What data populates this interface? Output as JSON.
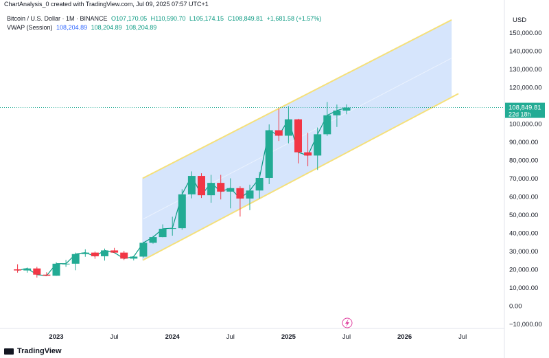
{
  "header": {
    "caption": "ChartAnalysis_0 created with TradingView.com, Jul 09, 2025 07:57 UTC+1",
    "symbol": "Bitcoin / U.S. Dollar · 1M · BINANCE",
    "open": "O107,170.05",
    "high": "H110,590.70",
    "low": "L105,174.15",
    "close": "C108,849.81",
    "change": "+1,681.58 (+1.57%)",
    "vwap_label": "VWAP (Session)",
    "vwap_values": [
      "108,204.89",
      "108,204.89",
      "108,204.89"
    ]
  },
  "price_axis": {
    "currency": "USD",
    "ticks": [
      "150,000.00",
      "140,000.00",
      "130,000.00",
      "120,000.00",
      "100,000.00",
      "90,000.00",
      "80,000.00",
      "70,000.00",
      "60,000.00",
      "50,000.00",
      "40,000.00",
      "30,000.00",
      "20,000.00",
      "10,000.00",
      "0.00",
      "−10,000.00"
    ],
    "last_price": "108,849.81",
    "countdown": "22d 18h"
  },
  "time_axis": {
    "ticks": [
      "2023",
      "Jul",
      "2024",
      "Jul",
      "2025",
      "Jul",
      "2026",
      "Jul"
    ]
  },
  "footer": {
    "brand": "TradingView"
  },
  "colors": {
    "up": "#22ab94",
    "down": "#f23645",
    "channel_fill": "#cfe0fb",
    "channel_line": "#f5e07a",
    "vwap": "#089981"
  },
  "chart_data": {
    "type": "candlestick",
    "interval": "1M",
    "ylim": [
      -10000,
      150000
    ],
    "channel": {
      "start": "2023-10",
      "end": "2026-06",
      "upper_start": 70000,
      "upper_end": 157000,
      "lower_start": 25000,
      "lower_end": 115000
    },
    "candles": [
      {
        "t": "2022-09",
        "o": 20000,
        "h": 22800,
        "l": 18200,
        "c": 19400
      },
      {
        "t": "2022-10",
        "o": 19400,
        "h": 21000,
        "l": 18200,
        "c": 20500
      },
      {
        "t": "2022-11",
        "o": 20500,
        "h": 21400,
        "l": 15500,
        "c": 17100
      },
      {
        "t": "2022-12",
        "o": 17100,
        "h": 18400,
        "l": 16300,
        "c": 16500
      },
      {
        "t": "2023-01",
        "o": 16500,
        "h": 23900,
        "l": 16400,
        "c": 23100
      },
      {
        "t": "2023-02",
        "o": 23100,
        "h": 25200,
        "l": 21400,
        "c": 23100
      },
      {
        "t": "2023-03",
        "o": 23100,
        "h": 29200,
        "l": 19500,
        "c": 28400
      },
      {
        "t": "2023-04",
        "o": 28400,
        "h": 31000,
        "l": 26900,
        "c": 29200
      },
      {
        "t": "2023-05",
        "o": 29200,
        "h": 29800,
        "l": 25800,
        "c": 27200
      },
      {
        "t": "2023-06",
        "o": 27200,
        "h": 31400,
        "l": 24800,
        "c": 30400
      },
      {
        "t": "2023-07",
        "o": 30400,
        "h": 31800,
        "l": 28900,
        "c": 29200
      },
      {
        "t": "2023-08",
        "o": 29200,
        "h": 30200,
        "l": 25100,
        "c": 25900
      },
      {
        "t": "2023-09",
        "o": 25900,
        "h": 27500,
        "l": 24900,
        "c": 27000
      },
      {
        "t": "2023-10",
        "o": 27000,
        "h": 35200,
        "l": 26500,
        "c": 34600
      },
      {
        "t": "2023-11",
        "o": 34600,
        "h": 38400,
        "l": 34100,
        "c": 37700
      },
      {
        "t": "2023-12",
        "o": 37700,
        "h": 44700,
        "l": 37600,
        "c": 42300
      },
      {
        "t": "2024-01",
        "o": 42300,
        "h": 48900,
        "l": 38500,
        "c": 42600
      },
      {
        "t": "2024-02",
        "o": 42600,
        "h": 64000,
        "l": 41800,
        "c": 61200
      },
      {
        "t": "2024-03",
        "o": 61200,
        "h": 73800,
        "l": 59000,
        "c": 71300
      },
      {
        "t": "2024-04",
        "o": 71300,
        "h": 72800,
        "l": 59200,
        "c": 60700
      },
      {
        "t": "2024-05",
        "o": 60700,
        "h": 71900,
        "l": 56600,
        "c": 67500
      },
      {
        "t": "2024-06",
        "o": 67500,
        "h": 71900,
        "l": 58400,
        "c": 62700
      },
      {
        "t": "2024-07",
        "o": 62700,
        "h": 70000,
        "l": 53500,
        "c": 64600
      },
      {
        "t": "2024-08",
        "o": 64600,
        "h": 65600,
        "l": 49000,
        "c": 58900
      },
      {
        "t": "2024-09",
        "o": 58900,
        "h": 66500,
        "l": 52500,
        "c": 63300
      },
      {
        "t": "2024-10",
        "o": 63300,
        "h": 73600,
        "l": 58900,
        "c": 70200
      },
      {
        "t": "2024-11",
        "o": 70200,
        "h": 99600,
        "l": 66800,
        "c": 96400
      },
      {
        "t": "2024-12",
        "o": 96400,
        "h": 108300,
        "l": 90500,
        "c": 93400
      },
      {
        "t": "2025-01",
        "o": 93400,
        "h": 109600,
        "l": 89200,
        "c": 102400
      },
      {
        "t": "2025-02",
        "o": 102400,
        "h": 102700,
        "l": 78200,
        "c": 84300
      },
      {
        "t": "2025-03",
        "o": 84300,
        "h": 95000,
        "l": 76600,
        "c": 82500
      },
      {
        "t": "2025-04",
        "o": 82500,
        "h": 97900,
        "l": 74600,
        "c": 94200
      },
      {
        "t": "2025-05",
        "o": 94200,
        "h": 111900,
        "l": 93300,
        "c": 104600
      },
      {
        "t": "2025-06",
        "o": 104600,
        "h": 110500,
        "l": 98200,
        "c": 107200
      },
      {
        "t": "2025-07",
        "o": 107200,
        "h": 110600,
        "l": 105200,
        "c": 108850
      }
    ]
  }
}
